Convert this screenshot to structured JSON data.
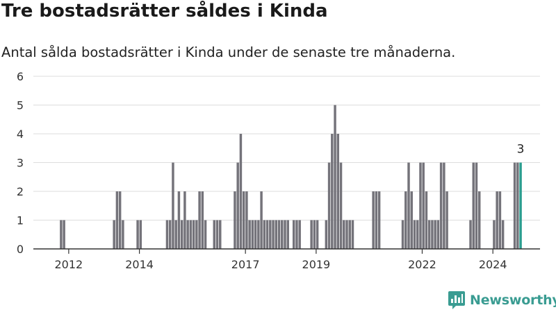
{
  "title": "Tre bostadsrätter såldes i Kinda",
  "subtitle": "Antal sålda bostadsrätter i Kinda under de senaste tre månaderna.",
  "brand": {
    "name": "Newsworthy",
    "logo_icon": "bar-chart-speech-bubble-icon"
  },
  "colors": {
    "bar": "#74737a",
    "highlight": "#2a9d8f",
    "grid": "#dddddd",
    "axis": "#333333",
    "brand": "#3a9c92"
  },
  "chart_data": {
    "type": "bar",
    "title": "Tre bostadsrätter såldes i Kinda",
    "subtitle": "Antal sålda bostadsrätter i Kinda under de senaste tre månaderna.",
    "xlabel": "",
    "ylabel": "",
    "ylim": [
      0,
      6
    ],
    "yticks": [
      0,
      1,
      2,
      3,
      4,
      5,
      6
    ],
    "grid": true,
    "x_tick_labels": [
      "2012",
      "2014",
      "2017",
      "2019",
      "2022",
      "2024"
    ],
    "x_tick_dates": [
      "2012-01",
      "2014-01",
      "2017-01",
      "2019-01",
      "2022-01",
      "2024-01"
    ],
    "start": "2011-01",
    "end": "2025-05",
    "granularity": "month",
    "annotation": {
      "date": "2024-10",
      "text": "3"
    },
    "highlight": "2024-10",
    "bars": [
      {
        "x": "2011-10",
        "y": 1
      },
      {
        "x": "2011-11",
        "y": 1
      },
      {
        "x": "2013-04",
        "y": 1
      },
      {
        "x": "2013-05",
        "y": 2
      },
      {
        "x": "2013-06",
        "y": 2
      },
      {
        "x": "2013-07",
        "y": 1
      },
      {
        "x": "2013-12",
        "y": 1
      },
      {
        "x": "2014-01",
        "y": 1
      },
      {
        "x": "2014-10",
        "y": 1
      },
      {
        "x": "2014-11",
        "y": 1
      },
      {
        "x": "2014-12",
        "y": 3
      },
      {
        "x": "2015-01",
        "y": 1
      },
      {
        "x": "2015-02",
        "y": 2
      },
      {
        "x": "2015-03",
        "y": 1
      },
      {
        "x": "2015-04",
        "y": 2
      },
      {
        "x": "2015-05",
        "y": 1
      },
      {
        "x": "2015-06",
        "y": 1
      },
      {
        "x": "2015-07",
        "y": 1
      },
      {
        "x": "2015-08",
        "y": 1
      },
      {
        "x": "2015-09",
        "y": 2
      },
      {
        "x": "2015-10",
        "y": 2
      },
      {
        "x": "2015-11",
        "y": 1
      },
      {
        "x": "2016-02",
        "y": 1
      },
      {
        "x": "2016-03",
        "y": 1
      },
      {
        "x": "2016-04",
        "y": 1
      },
      {
        "x": "2016-09",
        "y": 2
      },
      {
        "x": "2016-10",
        "y": 3
      },
      {
        "x": "2016-11",
        "y": 4
      },
      {
        "x": "2016-12",
        "y": 2
      },
      {
        "x": "2017-01",
        "y": 2
      },
      {
        "x": "2017-02",
        "y": 1
      },
      {
        "x": "2017-03",
        "y": 1
      },
      {
        "x": "2017-04",
        "y": 1
      },
      {
        "x": "2017-05",
        "y": 1
      },
      {
        "x": "2017-06",
        "y": 2
      },
      {
        "x": "2017-07",
        "y": 1
      },
      {
        "x": "2017-08",
        "y": 1
      },
      {
        "x": "2017-09",
        "y": 1
      },
      {
        "x": "2017-10",
        "y": 1
      },
      {
        "x": "2017-11",
        "y": 1
      },
      {
        "x": "2017-12",
        "y": 1
      },
      {
        "x": "2018-01",
        "y": 1
      },
      {
        "x": "2018-02",
        "y": 1
      },
      {
        "x": "2018-03",
        "y": 1
      },
      {
        "x": "2018-05",
        "y": 1
      },
      {
        "x": "2018-06",
        "y": 1
      },
      {
        "x": "2018-07",
        "y": 1
      },
      {
        "x": "2018-11",
        "y": 1
      },
      {
        "x": "2018-12",
        "y": 1
      },
      {
        "x": "2019-01",
        "y": 1
      },
      {
        "x": "2019-04",
        "y": 1
      },
      {
        "x": "2019-05",
        "y": 3
      },
      {
        "x": "2019-06",
        "y": 4
      },
      {
        "x": "2019-07",
        "y": 5
      },
      {
        "x": "2019-08",
        "y": 4
      },
      {
        "x": "2019-09",
        "y": 3
      },
      {
        "x": "2019-10",
        "y": 1
      },
      {
        "x": "2019-11",
        "y": 1
      },
      {
        "x": "2019-12",
        "y": 1
      },
      {
        "x": "2020-01",
        "y": 1
      },
      {
        "x": "2020-08",
        "y": 2
      },
      {
        "x": "2020-09",
        "y": 2
      },
      {
        "x": "2020-10",
        "y": 2
      },
      {
        "x": "2021-06",
        "y": 1
      },
      {
        "x": "2021-07",
        "y": 2
      },
      {
        "x": "2021-08",
        "y": 3
      },
      {
        "x": "2021-09",
        "y": 2
      },
      {
        "x": "2021-10",
        "y": 1
      },
      {
        "x": "2021-11",
        "y": 1
      },
      {
        "x": "2021-12",
        "y": 3
      },
      {
        "x": "2022-01",
        "y": 3
      },
      {
        "x": "2022-02",
        "y": 2
      },
      {
        "x": "2022-03",
        "y": 1
      },
      {
        "x": "2022-04",
        "y": 1
      },
      {
        "x": "2022-05",
        "y": 1
      },
      {
        "x": "2022-06",
        "y": 1
      },
      {
        "x": "2022-07",
        "y": 3
      },
      {
        "x": "2022-08",
        "y": 3
      },
      {
        "x": "2022-09",
        "y": 2
      },
      {
        "x": "2023-05",
        "y": 1
      },
      {
        "x": "2023-06",
        "y": 3
      },
      {
        "x": "2023-07",
        "y": 3
      },
      {
        "x": "2023-08",
        "y": 2
      },
      {
        "x": "2024-01",
        "y": 1
      },
      {
        "x": "2024-02",
        "y": 2
      },
      {
        "x": "2024-03",
        "y": 2
      },
      {
        "x": "2024-04",
        "y": 1
      },
      {
        "x": "2024-08",
        "y": 3
      },
      {
        "x": "2024-09",
        "y": 3
      },
      {
        "x": "2024-10",
        "y": 3
      }
    ]
  }
}
